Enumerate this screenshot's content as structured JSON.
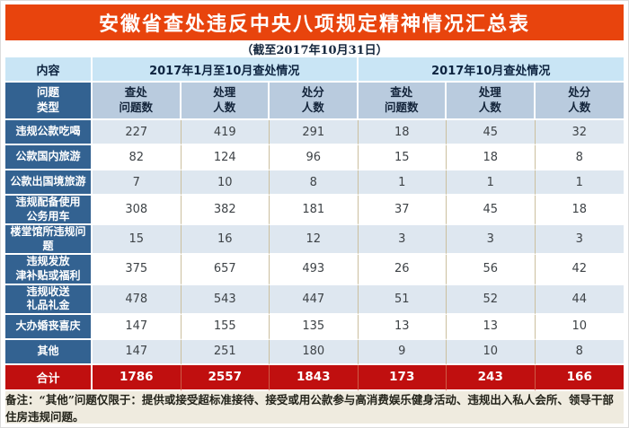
{
  "title": "安徽省查处违反中央八项规定精神情况汇总表",
  "subtitle": "（截至2017年10月31日）",
  "header": {
    "content_label": "内容",
    "period_groups": [
      "2017年1月至10月查处情况",
      "2017年10月查处情况"
    ],
    "row_axis_label": "问题\n类型",
    "metric_labels": [
      "查处\n问题数",
      "处理\n人数",
      "处分\n人数"
    ]
  },
  "chart_data": {
    "type": "table",
    "title": "安徽省查处违反中央八项规定精神情况汇总表",
    "as_of": "截至2017年10月31日",
    "column_groups": [
      "2017年1月至10月查处情况",
      "2017年10月查处情况"
    ],
    "columns": [
      "问题类型",
      "查处问题数",
      "处理人数",
      "处分人数",
      "查处问题数",
      "处理人数",
      "处分人数"
    ],
    "rows": [
      {
        "label": "违规公款吃喝",
        "values": [
          227,
          419,
          291,
          18,
          45,
          32
        ]
      },
      {
        "label": "公款国内旅游",
        "values": [
          82,
          124,
          96,
          15,
          18,
          8
        ]
      },
      {
        "label": "公款出国境旅游",
        "values": [
          7,
          10,
          8,
          1,
          1,
          1
        ]
      },
      {
        "label": "违规配备使用\n公务用车",
        "values": [
          308,
          382,
          181,
          37,
          45,
          18
        ]
      },
      {
        "label": "楼堂馆所违规问题",
        "values": [
          15,
          16,
          12,
          3,
          3,
          3
        ]
      },
      {
        "label": "违规发放\n津补贴或福利",
        "values": [
          375,
          657,
          493,
          26,
          56,
          42
        ]
      },
      {
        "label": "违规收送\n礼品礼金",
        "values": [
          478,
          543,
          447,
          51,
          52,
          44
        ]
      },
      {
        "label": "大办婚丧喜庆",
        "values": [
          147,
          155,
          135,
          13,
          13,
          10
        ]
      },
      {
        "label": "其他",
        "values": [
          147,
          251,
          180,
          9,
          10,
          8
        ]
      }
    ],
    "total": {
      "label": "合计",
      "values": [
        1786,
        2557,
        1843,
        173,
        243,
        166
      ]
    }
  },
  "footnote": "备注：“其他”问题仅限于：提供或接受超标准接待、接受或用公款参与高消费娱乐健身活动、违规出入私人会所、领导干部住房违规问题。",
  "colors": {
    "title_bar": "#E8440D",
    "header_light_blue": "#C9E5F5",
    "header_muted_blue": "#B9CBDE",
    "label_column": "#336291",
    "row_stripe": "#DEE7F0",
    "row_plain": "#FFFFFF",
    "total_row": "#C00F0F",
    "grid_line": "#CBBF9E",
    "footnote_bg": "#EFEBDF"
  }
}
